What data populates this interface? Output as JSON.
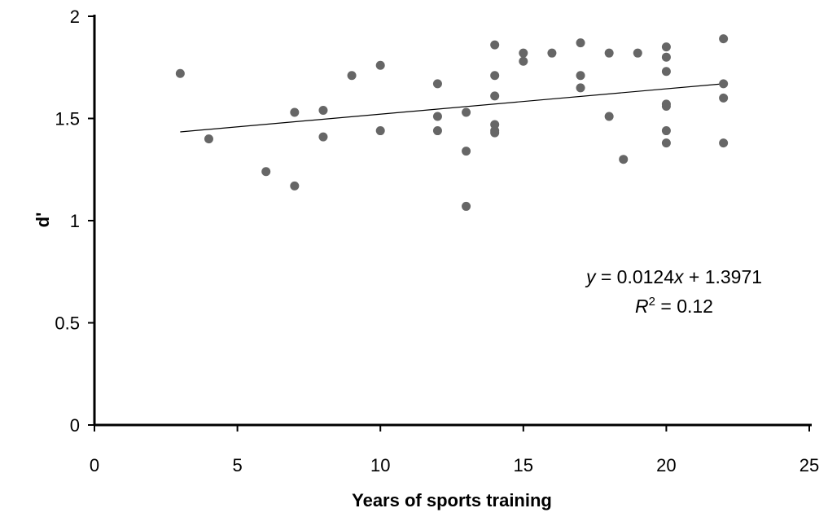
{
  "chart_data": {
    "type": "scatter",
    "title": "",
    "xlabel": "Years of sports training",
    "ylabel": "d'",
    "xlim": [
      0,
      25
    ],
    "ylim": [
      0,
      2
    ],
    "x_ticks": [
      "0",
      "5",
      "10",
      "15",
      "20",
      "25"
    ],
    "y_ticks": [
      "0",
      "0.5",
      "1",
      "1.5",
      "2"
    ],
    "grid": false,
    "legend": "none",
    "marker_color": "#666666",
    "trendline": {
      "slope": 0.0124,
      "intercept": 1.3971,
      "x_range": [
        3,
        22
      ]
    },
    "annotation": {
      "equation": {
        "y": "y",
        "eq1": " = 0.0124",
        "x": "x",
        "eq2": " + 1.3971"
      },
      "r2": {
        "r": "R",
        "sup": "2",
        "val": " = 0.12"
      }
    },
    "points": [
      {
        "x": 3,
        "y": 1.72
      },
      {
        "x": 4,
        "y": 1.4
      },
      {
        "x": 6,
        "y": 1.24
      },
      {
        "x": 7,
        "y": 1.53
      },
      {
        "x": 7,
        "y": 1.17
      },
      {
        "x": 8,
        "y": 1.54
      },
      {
        "x": 8,
        "y": 1.41
      },
      {
        "x": 9,
        "y": 1.71
      },
      {
        "x": 10,
        "y": 1.76
      },
      {
        "x": 10,
        "y": 1.44
      },
      {
        "x": 12,
        "y": 1.67
      },
      {
        "x": 12,
        "y": 1.51
      },
      {
        "x": 12,
        "y": 1.44
      },
      {
        "x": 13,
        "y": 1.53
      },
      {
        "x": 13,
        "y": 1.34
      },
      {
        "x": 13,
        "y": 1.07
      },
      {
        "x": 14,
        "y": 1.86
      },
      {
        "x": 14,
        "y": 1.71
      },
      {
        "x": 14,
        "y": 1.61
      },
      {
        "x": 14,
        "y": 1.47
      },
      {
        "x": 14,
        "y": 1.44
      },
      {
        "x": 14,
        "y": 1.43
      },
      {
        "x": 15,
        "y": 1.82
      },
      {
        "x": 15,
        "y": 1.78
      },
      {
        "x": 16,
        "y": 1.82
      },
      {
        "x": 17,
        "y": 1.87
      },
      {
        "x": 17,
        "y": 1.71
      },
      {
        "x": 17,
        "y": 1.65
      },
      {
        "x": 18,
        "y": 1.82
      },
      {
        "x": 18,
        "y": 1.51
      },
      {
        "x": 18.5,
        "y": 1.3
      },
      {
        "x": 19,
        "y": 1.82
      },
      {
        "x": 20,
        "y": 1.85
      },
      {
        "x": 20,
        "y": 1.8
      },
      {
        "x": 20,
        "y": 1.73
      },
      {
        "x": 20,
        "y": 1.57
      },
      {
        "x": 20,
        "y": 1.56
      },
      {
        "x": 20,
        "y": 1.44
      },
      {
        "x": 20,
        "y": 1.38
      },
      {
        "x": 22,
        "y": 1.89
      },
      {
        "x": 22,
        "y": 1.67
      },
      {
        "x": 22,
        "y": 1.6
      },
      {
        "x": 22,
        "y": 1.38
      }
    ]
  }
}
